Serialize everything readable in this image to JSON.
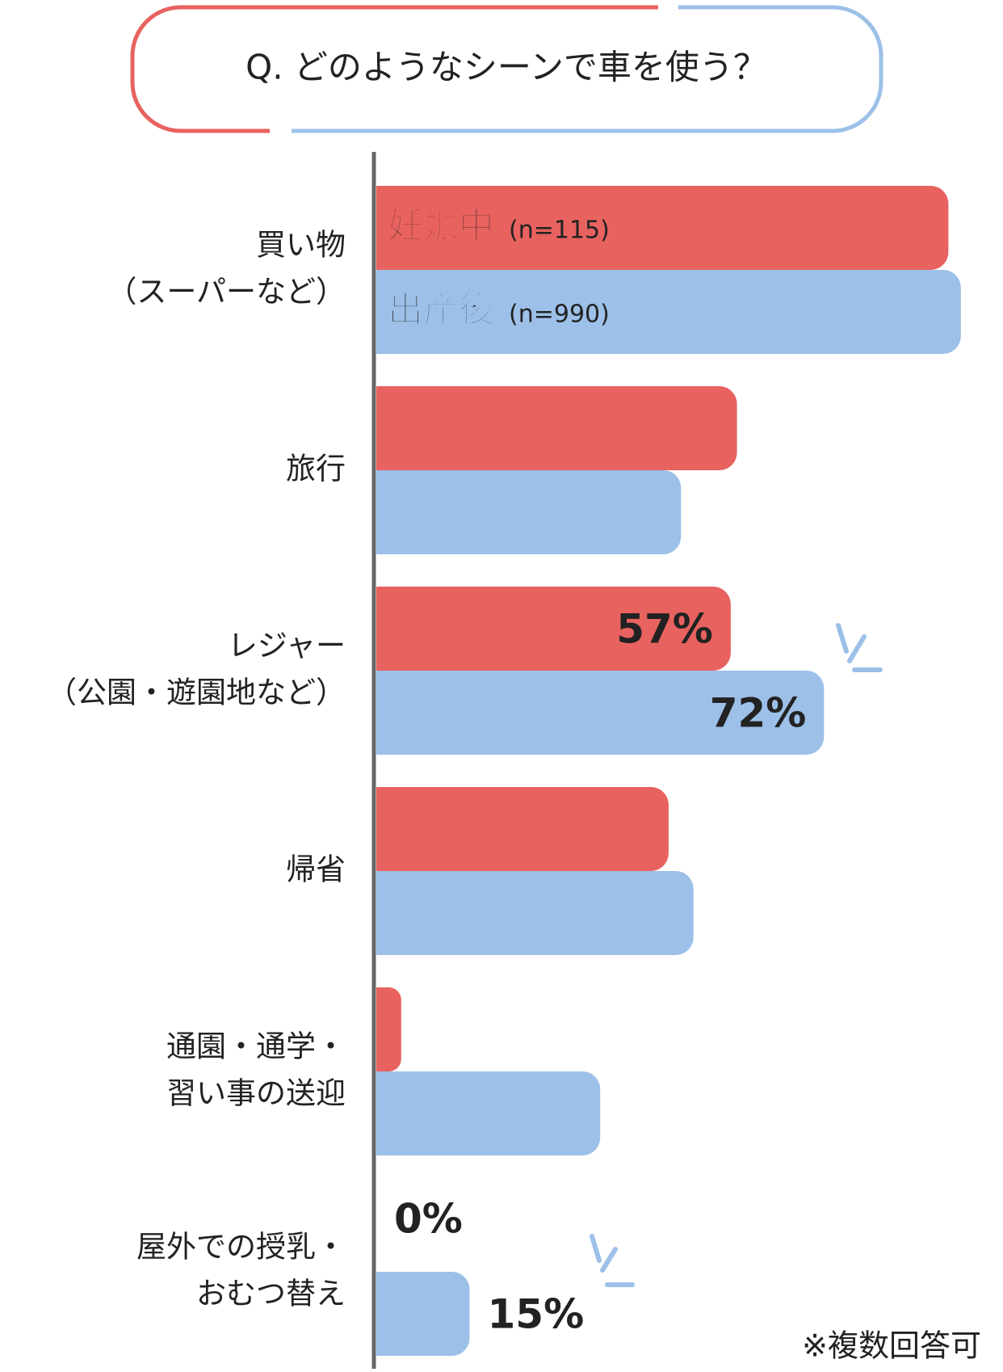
{
  "chart_data": {
    "type": "bar",
    "orientation": "horizontal",
    "title": "Q. どのようなシーンで車を使う？",
    "note": "※複数回答可",
    "categories": [
      [
        "買い物",
        "（スーパーなど）"
      ],
      [
        "旅行"
      ],
      [
        "レジャー",
        "（公園・遊園地など）"
      ],
      [
        "帰省"
      ],
      [
        "通園・通学・",
        "習い事の送迎"
      ],
      [
        "屋外での授乳・",
        "おむつ替え"
      ]
    ],
    "series": [
      {
        "name": "妊娠中",
        "n_label": "(n=115)",
        "color": "#e8625f",
        "values": [
          92,
          58,
          57,
          47,
          4,
          0
        ],
        "value_labels": [
          null,
          null,
          "57%",
          null,
          null,
          "0%"
        ]
      },
      {
        "name": "出産後",
        "n_label": "(n=990)",
        "color": "#9cc0e8",
        "values": [
          94,
          49,
          72,
          51,
          36,
          15
        ],
        "value_labels": [
          null,
          null,
          "72%",
          null,
          null,
          "15%"
        ]
      }
    ],
    "xlim": [
      0,
      100
    ]
  }
}
